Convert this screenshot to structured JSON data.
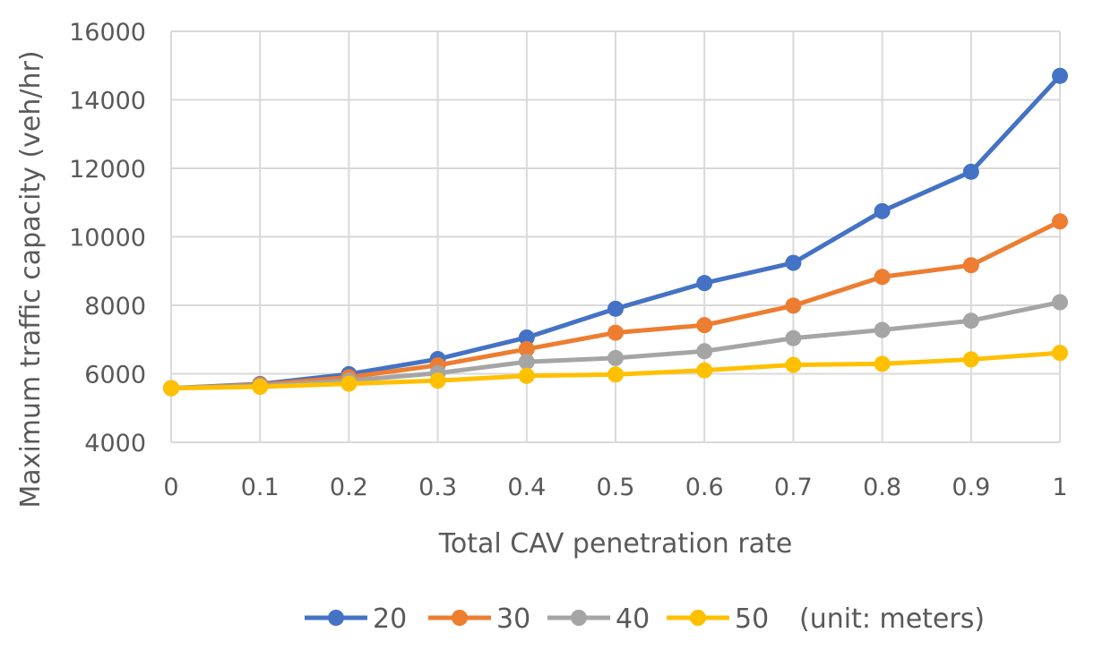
{
  "chart_data": {
    "type": "line",
    "xlabel": "Total CAV penetration rate",
    "ylabel": "Maximum traffic capacity (veh/hr)",
    "x": [
      0,
      0.1,
      0.2,
      0.3,
      0.4,
      0.5,
      0.6,
      0.7,
      0.8,
      0.9,
      1
    ],
    "x_tick_labels": [
      "0",
      "0.1",
      "0.2",
      "0.3",
      "0.4",
      "0.5",
      "0.6",
      "0.7",
      "0.8",
      "0.9",
      "1"
    ],
    "ylim": [
      4000,
      16000
    ],
    "y_ticks": [
      4000,
      6000,
      8000,
      10000,
      12000,
      14000,
      16000
    ],
    "y_tick_labels": [
      "4000",
      "6000",
      "8000",
      "10000",
      "12000",
      "14000",
      "16000"
    ],
    "grid": true,
    "legend_position": "bottom",
    "legend_note": "(unit: meters)",
    "series": [
      {
        "name": "20",
        "color": "#4472c4",
        "values": [
          5580,
          5700,
          5990,
          6430,
          7060,
          7900,
          8650,
          9240,
          10750,
          11900,
          14700
        ]
      },
      {
        "name": "30",
        "color": "#ed7d31",
        "values": [
          5580,
          5680,
          5900,
          6250,
          6720,
          7200,
          7420,
          7990,
          8830,
          9170,
          10450
        ]
      },
      {
        "name": "40",
        "color": "#a5a5a5",
        "values": [
          5580,
          5650,
          5800,
          6020,
          6350,
          6460,
          6660,
          7040,
          7280,
          7550,
          8090
        ]
      },
      {
        "name": "50",
        "color": "#ffc000",
        "values": [
          5580,
          5620,
          5710,
          5800,
          5940,
          5980,
          6100,
          6260,
          6290,
          6420,
          6610
        ]
      }
    ]
  }
}
